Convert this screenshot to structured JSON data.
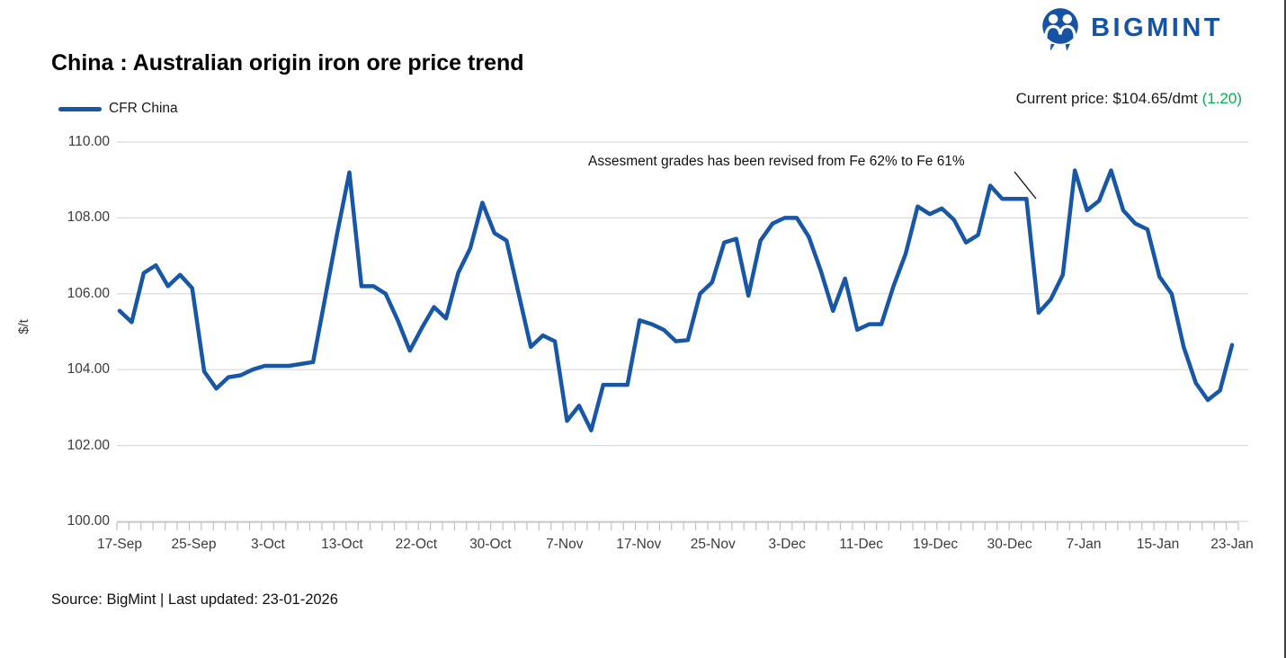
{
  "logo": {
    "text": "BIGMINT",
    "color": "#1553A4"
  },
  "header": {
    "title": "China : Australian origin iron ore price trend"
  },
  "legend": {
    "label": "CFR China"
  },
  "price": {
    "label": "Current price: $104.65/dmt ",
    "change": "(1.20)",
    "change_color": "#00B050"
  },
  "annotation": {
    "text": "Assesment grades has been revised from Fe 62% to Fe 61%"
  },
  "footer": {
    "text": "Source: BigMint | Last updated: 23-01-2026"
  },
  "chart_data": {
    "type": "line",
    "title": "China : Australian origin iron ore price trend",
    "xlabel": "",
    "ylabel": "$/t",
    "ylim": [
      100,
      110
    ],
    "yticks": [
      100,
      102,
      104,
      106,
      108,
      110
    ],
    "ytick_labels": [
      "100.00",
      "102.00",
      "104.00",
      "106.00",
      "108.00",
      "110.00"
    ],
    "x_labels": [
      "17-Sep",
      "25-Sep",
      "3-Oct",
      "13-Oct",
      "22-Oct",
      "30-Oct",
      "7-Nov",
      "17-Nov",
      "25-Nov",
      "3-Dec",
      "11-Dec",
      "19-Dec",
      "30-Dec",
      "7-Jan",
      "15-Jan",
      "23-Jan"
    ],
    "grid": true,
    "legend_position": "top-left",
    "line_color": "#1757A6",
    "current_price": 104.65,
    "change": 1.2,
    "series": [
      {
        "name": "CFR China",
        "values": [
          105.55,
          105.25,
          106.55,
          106.75,
          106.2,
          106.5,
          106.15,
          103.95,
          103.5,
          103.8,
          103.85,
          104.0,
          104.1,
          104.1,
          104.1,
          104.15,
          104.2,
          105.9,
          107.6,
          109.2,
          106.2,
          106.2,
          106.0,
          105.3,
          104.5,
          105.1,
          105.65,
          105.35,
          106.55,
          107.2,
          108.4,
          107.6,
          107.4,
          106.0,
          104.6,
          104.9,
          104.75,
          102.65,
          103.05,
          102.4,
          103.6,
          103.6,
          103.6,
          105.3,
          105.2,
          105.05,
          104.75,
          104.78,
          106.0,
          106.3,
          107.35,
          107.45,
          105.95,
          107.4,
          107.85,
          108.0,
          108.0,
          107.5,
          106.6,
          105.55,
          106.4,
          105.05,
          105.2,
          105.2,
          106.2,
          107.05,
          108.3,
          108.1,
          108.25,
          107.95,
          107.35,
          107.55,
          108.85,
          108.5,
          108.5,
          108.5,
          105.5,
          105.85,
          106.5,
          109.25,
          108.2,
          108.45,
          109.25,
          108.2,
          107.85,
          107.7,
          106.45,
          106.0,
          104.6,
          103.65,
          103.2,
          103.45,
          104.65
        ]
      }
    ]
  }
}
